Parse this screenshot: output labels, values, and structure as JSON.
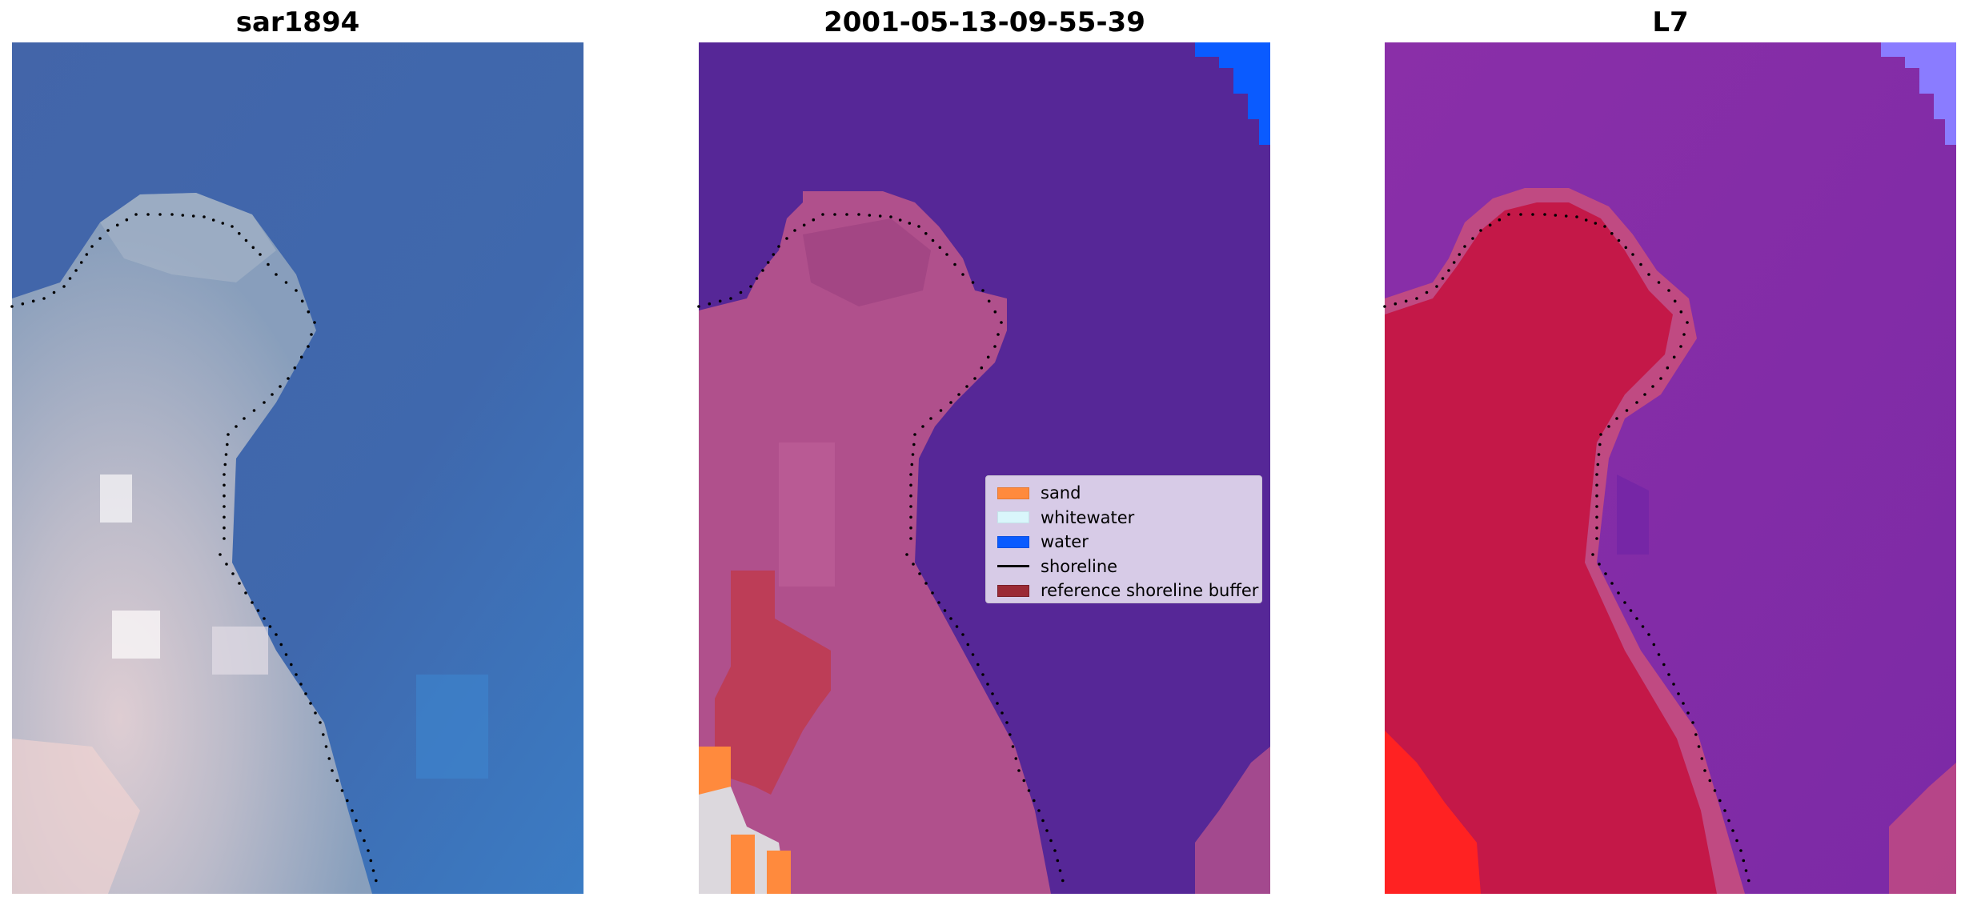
{
  "panels": [
    {
      "title": "sar1894"
    },
    {
      "title": "2001-05-13-09-55-39"
    },
    {
      "title": "L7"
    }
  ],
  "legend": {
    "items": [
      {
        "label": "sand",
        "color": "#ff8a3d",
        "kind": "patch"
      },
      {
        "label": "whitewater",
        "color": "#d9f6fb",
        "kind": "patch"
      },
      {
        "label": "water",
        "color": "#0a5bff",
        "kind": "patch"
      },
      {
        "label": "shoreline",
        "color": "#000000",
        "kind": "line"
      },
      {
        "label": "reference shoreline buffer",
        "color": "#9b2a35",
        "kind": "patch"
      }
    ]
  },
  "colors": {
    "rgb_water": "#3d62a8",
    "rgb_land": "#c9c4cc",
    "classified_water": "#562797",
    "classified_land": "#b0508c",
    "ndwi_water": "#8530a8",
    "ndwi_land": "#c41848"
  }
}
